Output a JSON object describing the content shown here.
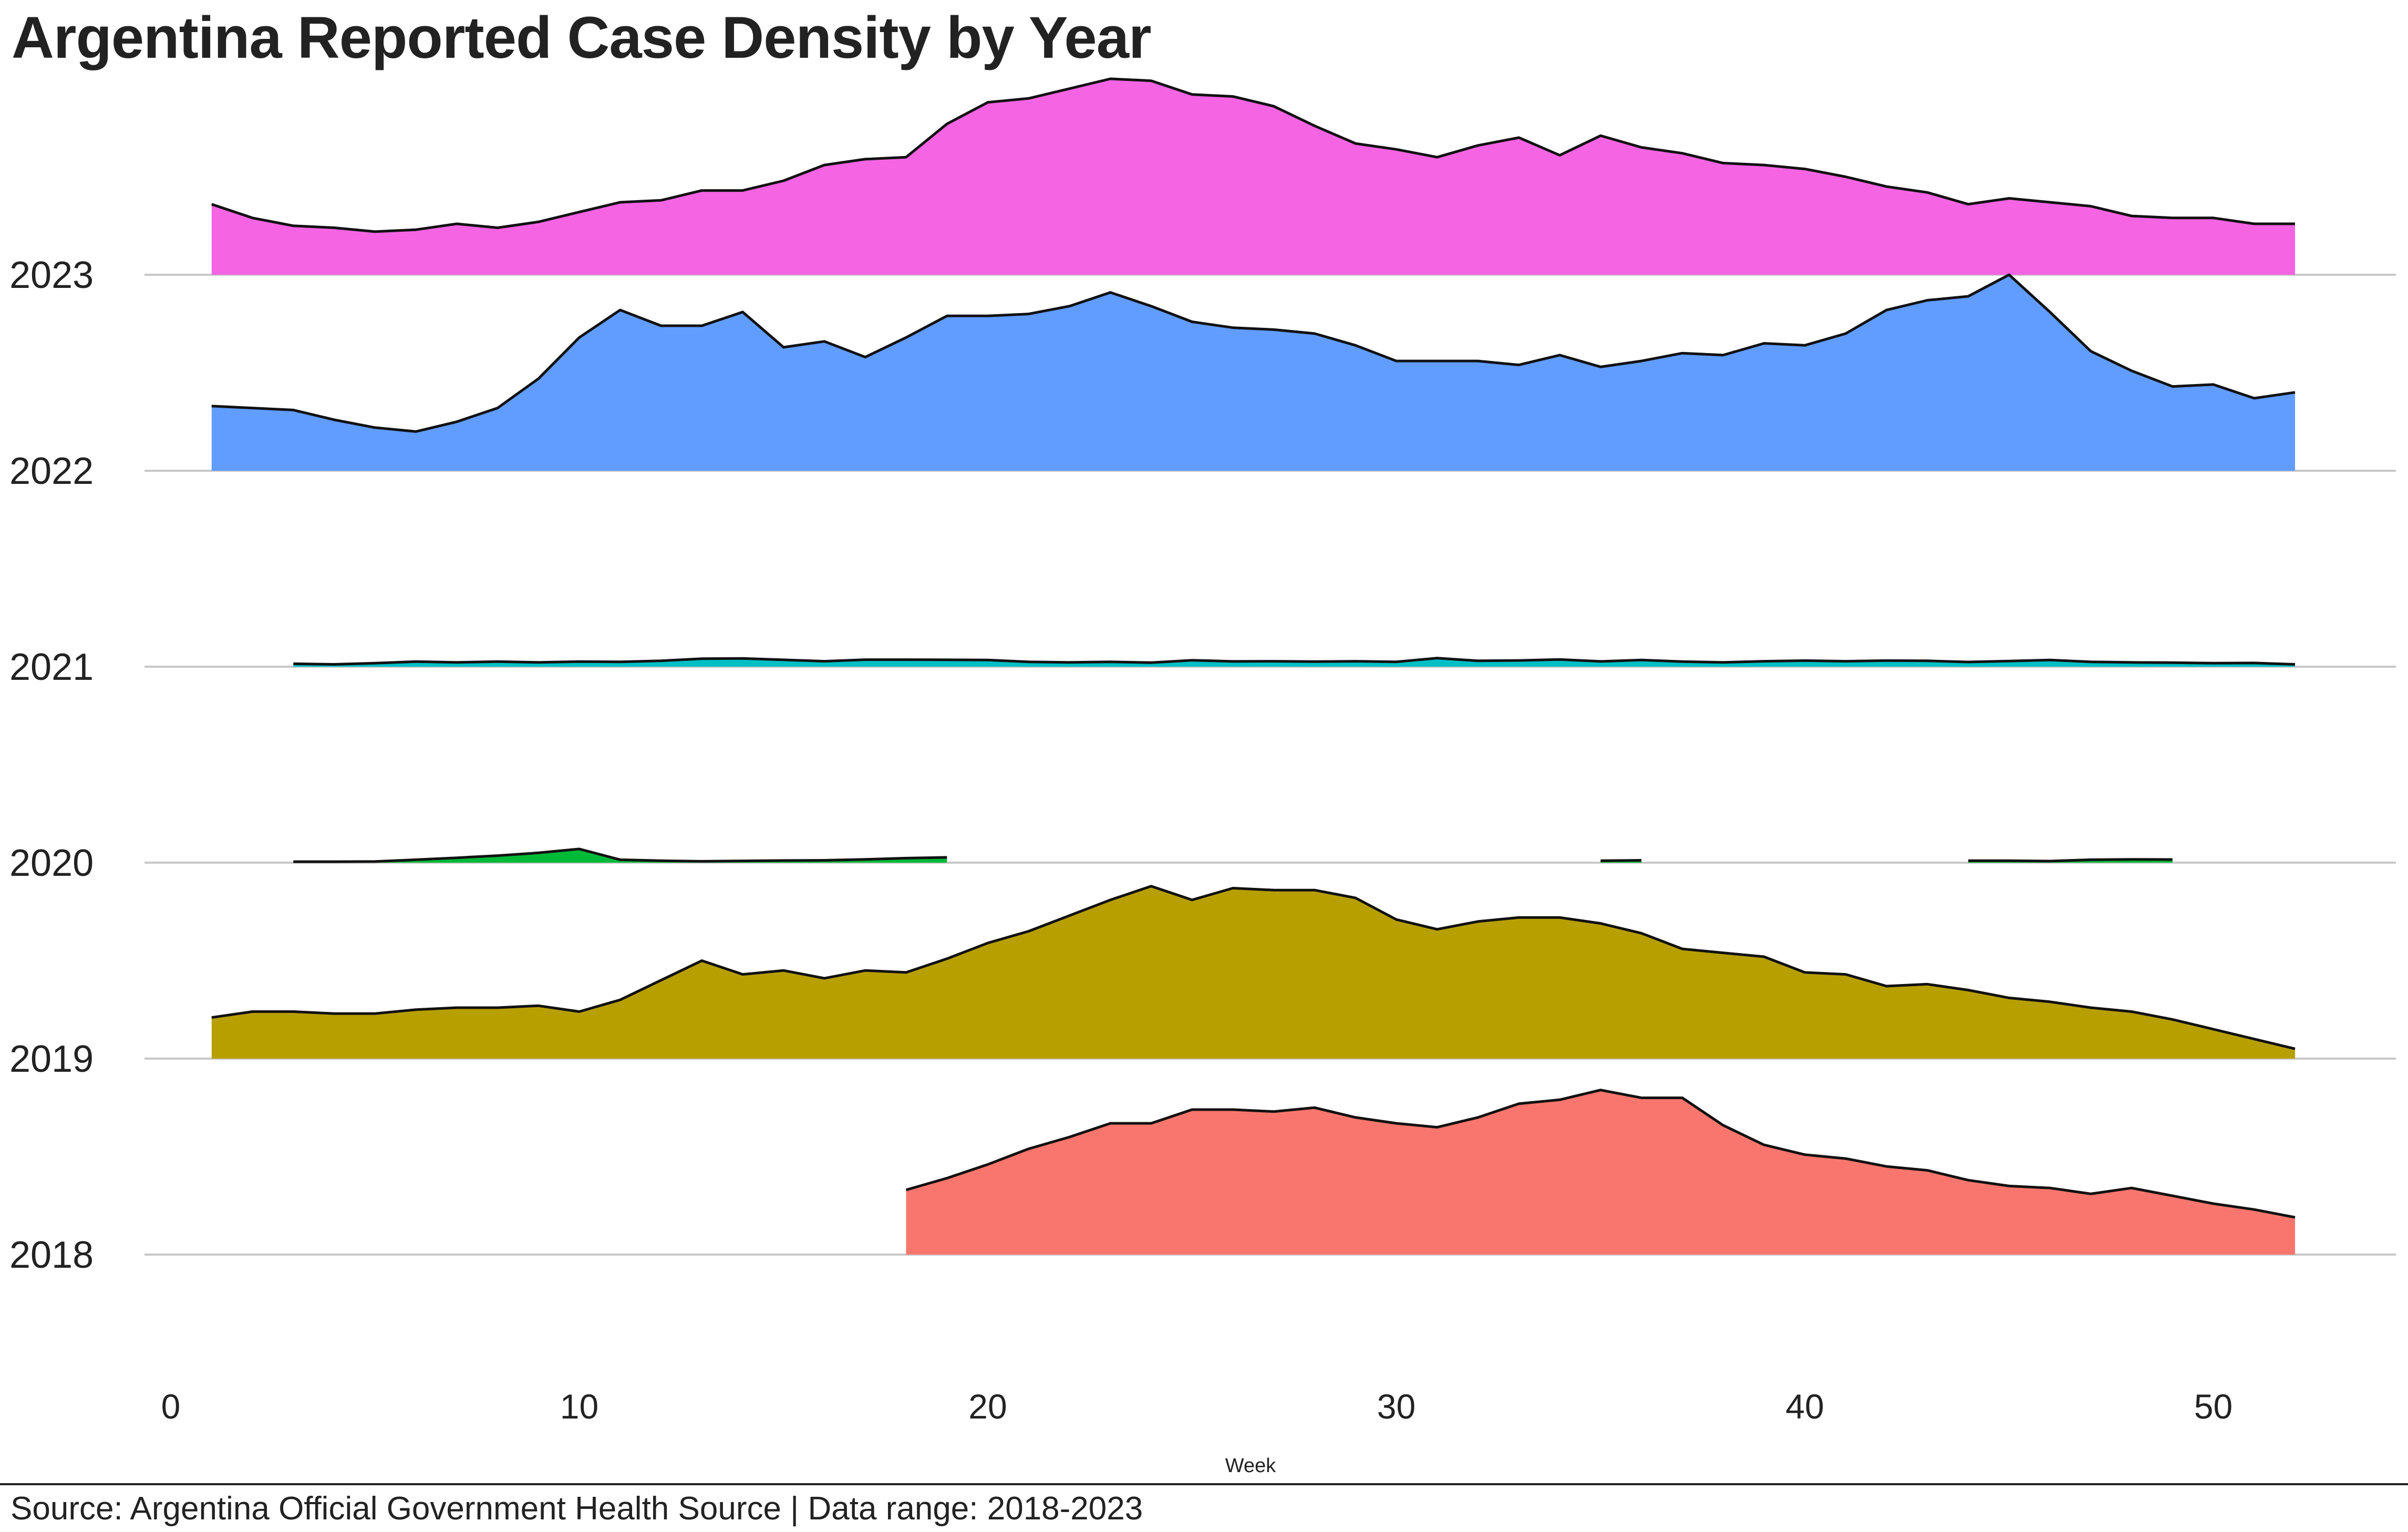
{
  "chart_data": {
    "type": "area",
    "title": "Argentina Reported Case Density by Year",
    "xlabel": "Week",
    "ylabel": "",
    "xlim": [
      -1,
      55
    ],
    "xticks": [
      0,
      10,
      20,
      30,
      40,
      50
    ],
    "categories": [
      "2018",
      "2019",
      "2020",
      "2021",
      "2022",
      "2023"
    ],
    "grid": "horizontal baselines only",
    "legend": "none",
    "series": [
      {
        "name": "2018",
        "color": "#F8766D",
        "segments": [
          {
            "x": [
              18,
              19,
              20,
              21,
              22,
              23,
              24,
              25,
              26,
              27,
              28,
              29,
              30,
              31,
              32,
              33,
              34,
              35,
              36,
              37,
              38,
              39,
              40,
              41,
              42,
              43,
              44,
              45,
              46,
              47,
              48,
              49,
              50,
              51,
              52
            ],
            "y": [
              0.33,
              0.39,
              0.46,
              0.54,
              0.6,
              0.67,
              0.67,
              0.74,
              0.74,
              0.73,
              0.75,
              0.7,
              0.67,
              0.65,
              0.7,
              0.77,
              0.79,
              0.84,
              0.8,
              0.8,
              0.66,
              0.56,
              0.51,
              0.49,
              0.45,
              0.43,
              0.38,
              0.35,
              0.34,
              0.31,
              0.34,
              0.3,
              0.26,
              0.23,
              0.19
            ]
          }
        ]
      },
      {
        "name": "2019",
        "color": "#B79F00",
        "segments": [
          {
            "x": [
              1,
              2,
              3,
              4,
              5,
              6,
              7,
              8,
              9,
              10,
              11,
              12,
              13,
              14,
              15,
              16,
              17,
              18,
              19,
              20,
              21,
              22,
              23,
              24,
              25,
              26,
              27,
              28,
              29,
              30,
              31,
              32,
              33,
              34,
              35,
              36,
              37,
              38,
              39,
              40,
              41,
              42,
              43,
              44,
              45,
              46,
              47,
              48,
              49,
              50,
              51,
              52
            ],
            "y": [
              0.21,
              0.24,
              0.24,
              0.23,
              0.23,
              0.25,
              0.26,
              0.26,
              0.27,
              0.24,
              0.3,
              0.4,
              0.5,
              0.43,
              0.45,
              0.41,
              0.45,
              0.44,
              0.51,
              0.59,
              0.65,
              0.73,
              0.81,
              0.88,
              0.81,
              0.87,
              0.86,
              0.86,
              0.82,
              0.71,
              0.66,
              0.7,
              0.72,
              0.72,
              0.69,
              0.64,
              0.56,
              0.54,
              0.52,
              0.44,
              0.43,
              0.37,
              0.38,
              0.35,
              0.31,
              0.29,
              0.26,
              0.24,
              0.2,
              0.15,
              0.1,
              0.05
            ]
          }
        ]
      },
      {
        "name": "2020",
        "color": "#00BA38",
        "segments": [
          {
            "x": [
              3,
              4,
              5,
              6,
              7,
              8,
              9,
              10,
              11,
              12,
              13,
              14,
              15,
              16,
              17,
              18,
              19
            ],
            "y": [
              0.005,
              0.005,
              0.006,
              0.015,
              0.025,
              0.036,
              0.05,
              0.07,
              0.015,
              0.01,
              0.007,
              0.009,
              0.011,
              0.012,
              0.017,
              0.023,
              0.027
            ]
          },
          {
            "x": [
              35,
              36
            ],
            "y": [
              0.01,
              0.012
            ]
          },
          {
            "x": [
              44,
              45,
              46,
              47,
              48,
              49
            ],
            "y": [
              0.01,
              0.01,
              0.008,
              0.015,
              0.017,
              0.016
            ]
          }
        ]
      },
      {
        "name": "2021",
        "color": "#00BFC4",
        "segments": [
          {
            "x": [
              3,
              4,
              5,
              6,
              7,
              8,
              9,
              10,
              11,
              12,
              13,
              14,
              15,
              16,
              17,
              18,
              19,
              20,
              21,
              22,
              23,
              24,
              25,
              26,
              27,
              28,
              29,
              30,
              31,
              32,
              33,
              34,
              35,
              36,
              37,
              38,
              39,
              40,
              41,
              42,
              43,
              44,
              45,
              46,
              47,
              48,
              49,
              50,
              51,
              52
            ],
            "y": [
              0.015,
              0.012,
              0.018,
              0.026,
              0.022,
              0.026,
              0.022,
              0.026,
              0.025,
              0.03,
              0.041,
              0.042,
              0.035,
              0.028,
              0.036,
              0.036,
              0.035,
              0.034,
              0.025,
              0.022,
              0.025,
              0.021,
              0.033,
              0.027,
              0.028,
              0.026,
              0.028,
              0.025,
              0.044,
              0.03,
              0.032,
              0.037,
              0.027,
              0.034,
              0.026,
              0.022,
              0.028,
              0.031,
              0.028,
              0.031,
              0.03,
              0.024,
              0.029,
              0.034,
              0.025,
              0.022,
              0.021,
              0.018,
              0.019,
              0.012
            ]
          }
        ]
      },
      {
        "name": "2022",
        "color": "#619CFF",
        "segments": [
          {
            "x": [
              1,
              2,
              3,
              4,
              5,
              6,
              7,
              8,
              9,
              10,
              11,
              12,
              13,
              14,
              15,
              16,
              17,
              18,
              19,
              20,
              21,
              22,
              23,
              24,
              25,
              26,
              27,
              28,
              29,
              30,
              31,
              32,
              33,
              34,
              35,
              36,
              37,
              38,
              39,
              40,
              41,
              42,
              43,
              44,
              45,
              46,
              47,
              48,
              49,
              50,
              51,
              52
            ],
            "y": [
              0.33,
              0.32,
              0.31,
              0.26,
              0.22,
              0.2,
              0.25,
              0.32,
              0.47,
              0.68,
              0.82,
              0.74,
              0.74,
              0.81,
              0.63,
              0.66,
              0.58,
              0.68,
              0.79,
              0.79,
              0.8,
              0.84,
              0.91,
              0.84,
              0.76,
              0.73,
              0.72,
              0.7,
              0.64,
              0.56,
              0.56,
              0.56,
              0.54,
              0.59,
              0.53,
              0.56,
              0.6,
              0.59,
              0.65,
              0.64,
              0.7,
              0.82,
              0.87,
              0.89,
              1.0,
              0.81,
              0.61,
              0.51,
              0.43,
              0.44,
              0.37,
              0.4
            ]
          }
        ]
      },
      {
        "name": "2023",
        "color": "#F564E3",
        "segments": [
          {
            "x": [
              1,
              2,
              3,
              4,
              5,
              6,
              7,
              8,
              9,
              10,
              11,
              12,
              13,
              14,
              15,
              16,
              17,
              18,
              19,
              20,
              21,
              22,
              23,
              24,
              25,
              26,
              27,
              28,
              29,
              30,
              31,
              32,
              33,
              34,
              35,
              36,
              37,
              38,
              39,
              40,
              41,
              42,
              43,
              44,
              45,
              46,
              47,
              48,
              49,
              50,
              51,
              52
            ],
            "y": [
              0.36,
              0.29,
              0.25,
              0.24,
              0.22,
              0.23,
              0.26,
              0.24,
              0.27,
              0.32,
              0.37,
              0.38,
              0.43,
              0.43,
              0.48,
              0.56,
              0.59,
              0.6,
              0.77,
              0.88,
              0.9,
              0.95,
              1.0,
              0.99,
              0.92,
              0.91,
              0.86,
              0.76,
              0.67,
              0.64,
              0.6,
              0.66,
              0.7,
              0.61,
              0.71,
              0.65,
              0.62,
              0.57,
              0.56,
              0.54,
              0.5,
              0.45,
              0.42,
              0.36,
              0.39,
              0.37,
              0.35,
              0.3,
              0.29,
              0.29,
              0.26,
              0.26
            ]
          }
        ]
      }
    ]
  },
  "footer": {
    "source": "Source: Argentina Official Government Health Source | Data range: 2018-2023"
  }
}
